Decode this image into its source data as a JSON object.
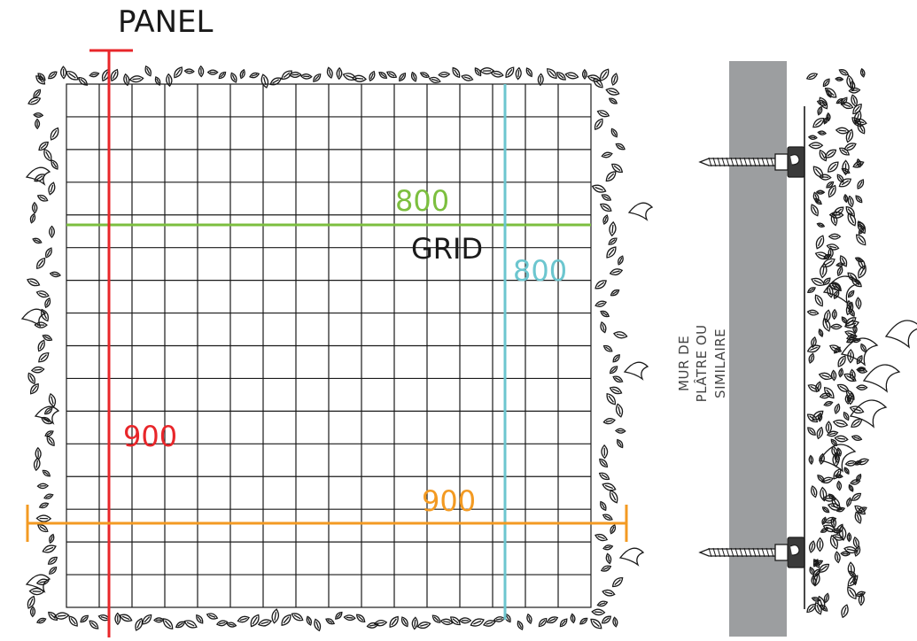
{
  "labels": {
    "panel": "PANEL",
    "grid": "GRID",
    "wall_line1": "MUR DE PLÂTRE OU",
    "wall_line2": "SIMILAIRE"
  },
  "dimensions": {
    "grid_width": "800",
    "grid_height": "800",
    "panel_height": "900",
    "panel_width": "900"
  },
  "colors": {
    "green": "#7cbf3f",
    "cyan": "#6cc6cf",
    "red": "#e8262a",
    "orange": "#f39a22",
    "wall": "#9c9ea0",
    "ink": "#1a1a1a"
  },
  "icons": [
    "leaf-border-icon",
    "screw-icon",
    "wall-clip-icon",
    "plant-foliage-icon"
  ]
}
